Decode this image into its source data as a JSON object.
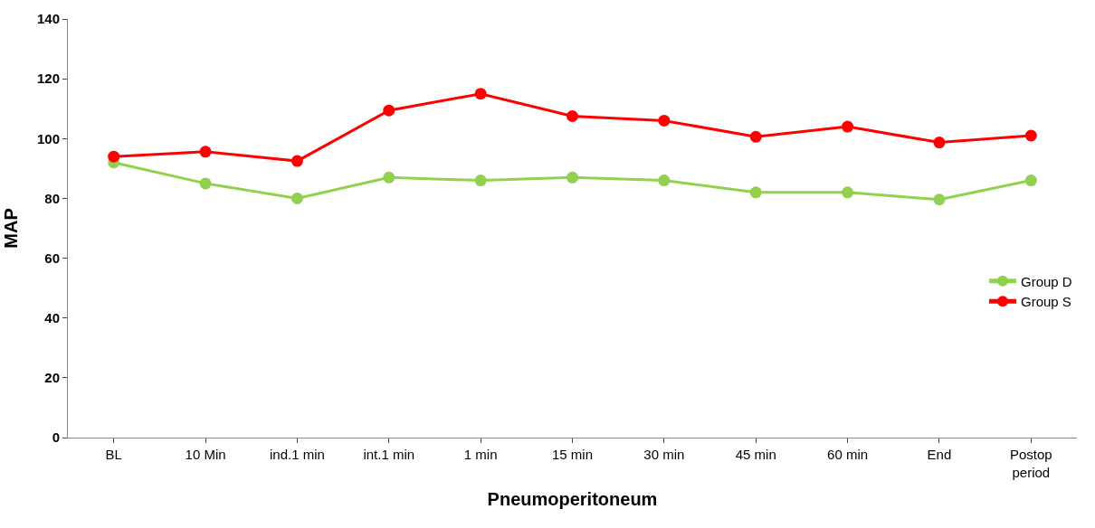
{
  "chart_data": {
    "type": "line",
    "xlabel": "Pneumoperitoneum",
    "ylabel": "MAP",
    "categories": [
      "BL",
      "10 Min",
      "ind.1 min",
      "int.1 min",
      "1 min",
      "15 min",
      "30 min",
      "45 min",
      "60 min",
      "End",
      "Postop period"
    ],
    "series": [
      {
        "name": "Group D",
        "color": "#92d050",
        "values": [
          92,
          85,
          80,
          87,
          86,
          87,
          86,
          82,
          82,
          79.6,
          86
        ]
      },
      {
        "name": "Group S",
        "color": "#ff0000",
        "values": [
          94,
          95.6,
          92.5,
          109.4,
          115,
          107.5,
          106,
          100.6,
          104,
          98.7,
          101
        ]
      }
    ],
    "ylim": [
      0,
      140
    ],
    "yticks": [
      0,
      20,
      40,
      60,
      80,
      100,
      120,
      140
    ],
    "legend": "right",
    "marker": "circle",
    "line_style": "solid"
  }
}
